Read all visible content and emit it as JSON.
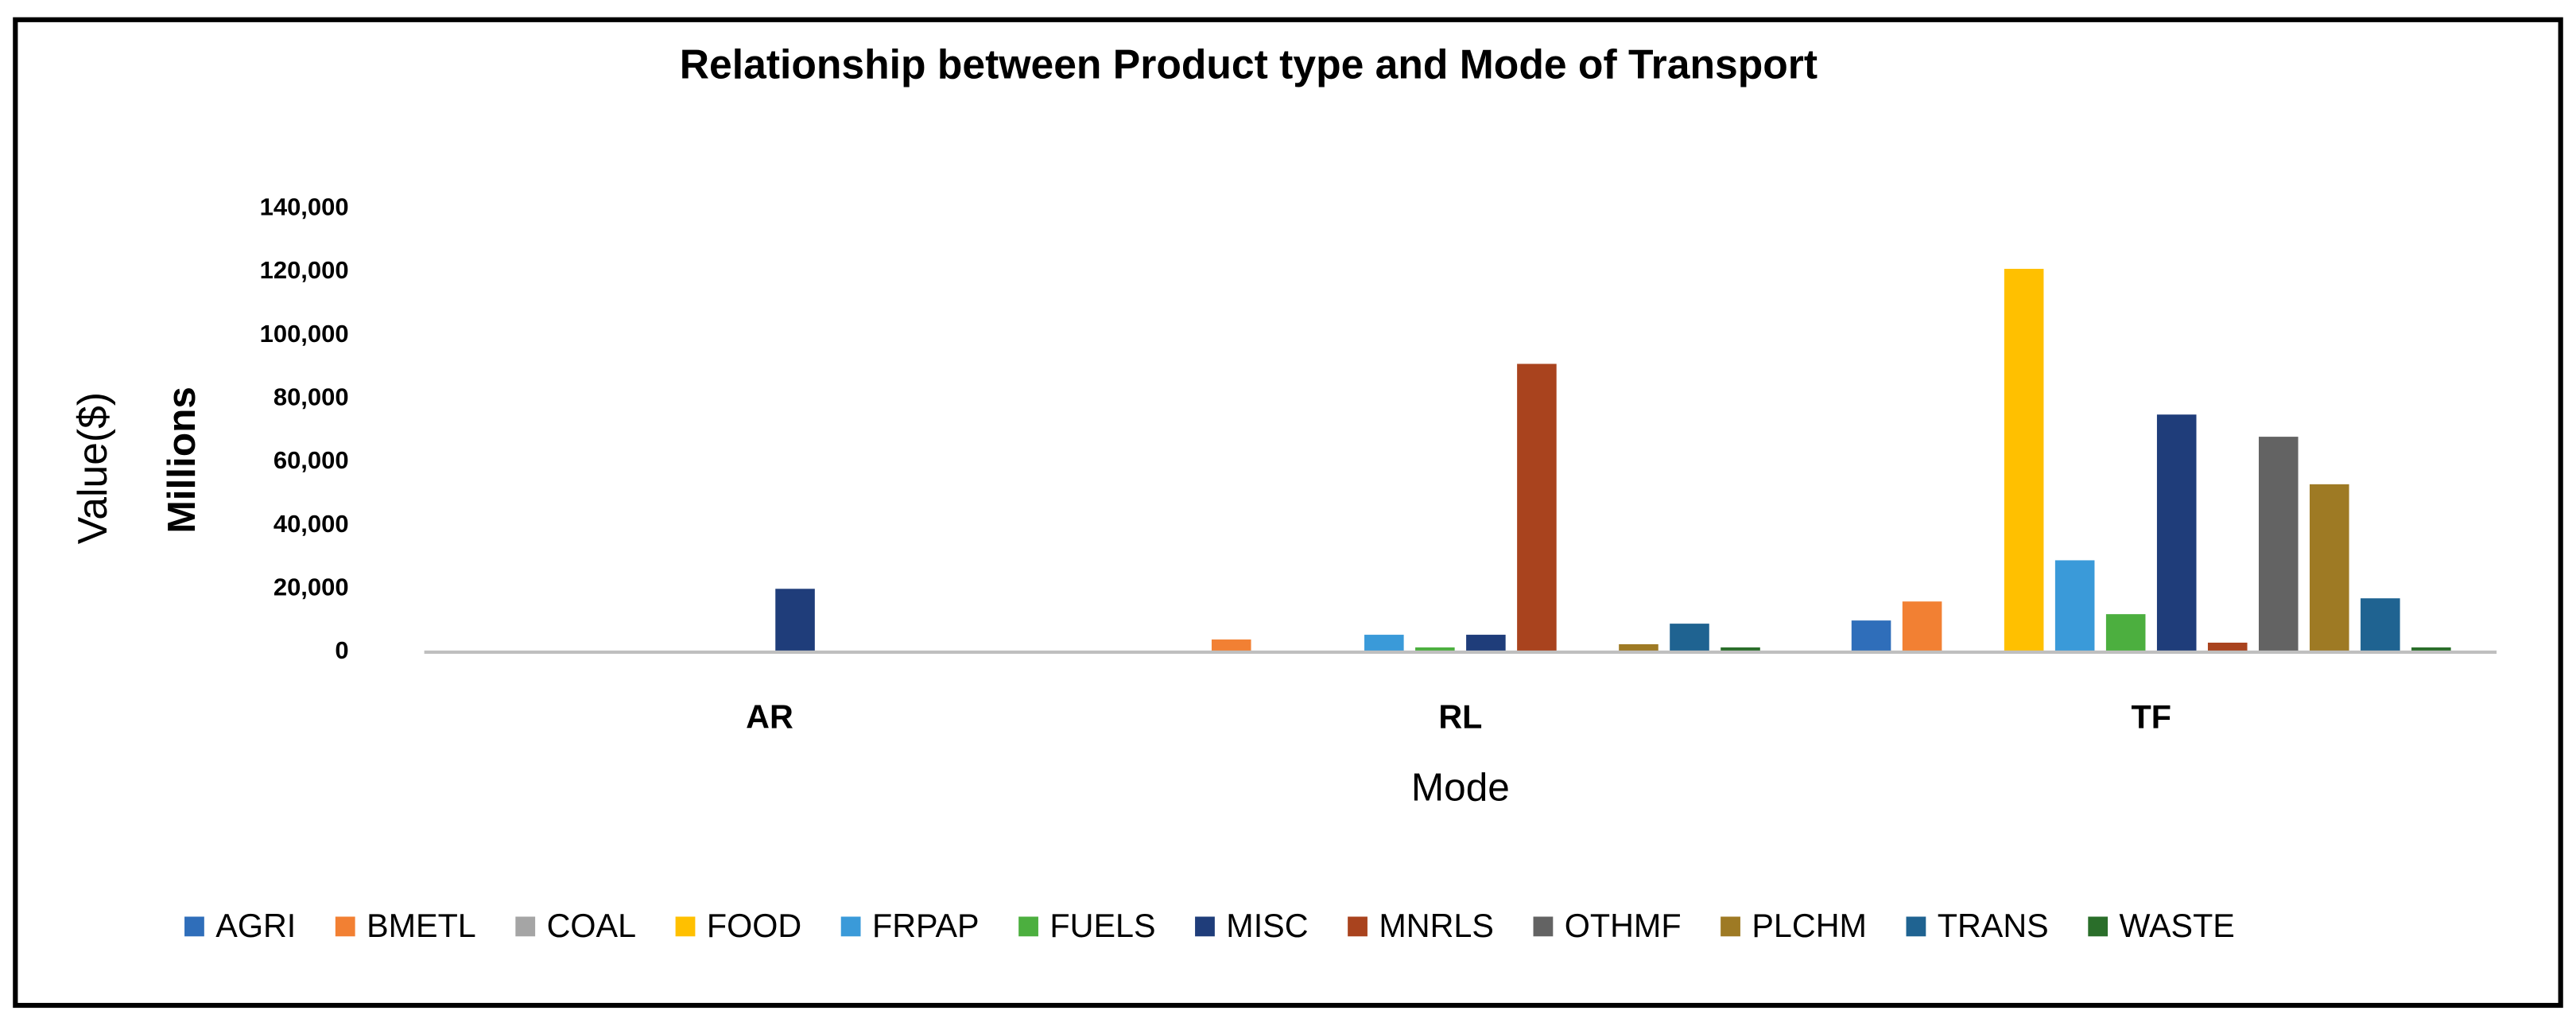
{
  "chart_data": {
    "type": "bar",
    "title": "Relationship between Product type and Mode of Transport",
    "y_label": "Value($)",
    "y_sublabel": "Millions",
    "x_label": "Mode",
    "categories": [
      "AR",
      "RL",
      "TF"
    ],
    "ylim": [
      0,
      140000
    ],
    "yticks": [
      0,
      {
        "value": 20000,
        "label": "20,000"
      },
      {
        "value": 40000,
        "label": "40,000"
      },
      {
        "value": 60000,
        "label": "60,000"
      },
      {
        "value": 80000,
        "label": "80,000"
      },
      {
        "value": 100000,
        "label": "100,000"
      },
      {
        "value": 120000,
        "label": "120,000"
      },
      {
        "value": 140000,
        "label": "140,000"
      }
    ],
    "grid": false,
    "legend": "bottom",
    "series": [
      {
        "name": "AGRI",
        "color": "#2f6eba",
        "values": [
          0,
          0,
          10000
        ]
      },
      {
        "name": "BMETL",
        "color": "#f28033",
        "values": [
          0,
          4000,
          16000
        ]
      },
      {
        "name": "COAL",
        "color": "#a5a5a5",
        "values": [
          0,
          0,
          0
        ]
      },
      {
        "name": "FOOD",
        "color": "#ffc000",
        "values": [
          0,
          0,
          121000
        ]
      },
      {
        "name": "FRPAP",
        "color": "#3a9ad9",
        "values": [
          0,
          5500,
          29000
        ]
      },
      {
        "name": "FUELS",
        "color": "#4caf3f",
        "values": [
          0,
          1500,
          12000
        ]
      },
      {
        "name": "MISC",
        "color": "#1f3d7a",
        "values": [
          20000,
          5500,
          75000
        ]
      },
      {
        "name": "MNRLS",
        "color": "#a9431e",
        "values": [
          0,
          91000,
          3000
        ]
      },
      {
        "name": "OTHMF",
        "color": "#636363",
        "values": [
          0,
          0,
          68000
        ]
      },
      {
        "name": "PLCHM",
        "color": "#9e7a24",
        "values": [
          0,
          2500,
          53000
        ]
      },
      {
        "name": "TRANS",
        "color": "#1f6391",
        "values": [
          0,
          9000,
          17000
        ]
      },
      {
        "name": "WASTE",
        "color": "#2a6e2a",
        "values": [
          0,
          1500,
          1500
        ]
      }
    ]
  }
}
